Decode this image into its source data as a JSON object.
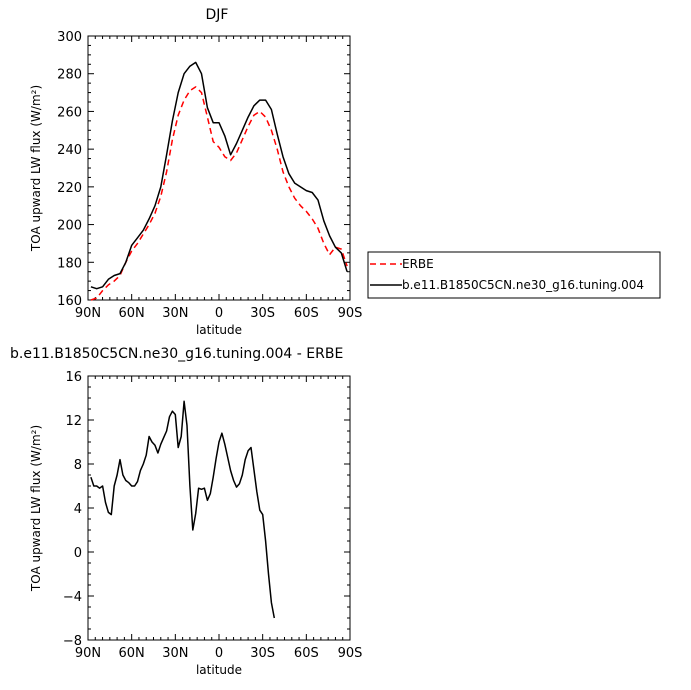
{
  "chart_data": [
    {
      "type": "line",
      "title": "DJF",
      "xlabel": "latitude",
      "ylabel": "TOA upward LW flux (W/m²)",
      "xlim": [
        90,
        -90
      ],
      "ylim": [
        160,
        300
      ],
      "x_ticks": [
        90,
        60,
        30,
        0,
        -30,
        -60,
        -90
      ],
      "x_tick_labels": [
        "90N",
        "60N",
        "30N",
        "0",
        "30S",
        "60S",
        "90S"
      ],
      "y_ticks": [
        160,
        180,
        200,
        220,
        240,
        260,
        280,
        300
      ],
      "y_tick_labels": [
        "160",
        "180",
        "200",
        "220",
        "240",
        "260",
        "280",
        "300"
      ],
      "legend_position": "right",
      "series": [
        {
          "name": "ERBE",
          "color": "#ff0000",
          "dash": "dashed",
          "points": [
            [
              88,
              160
            ],
            [
              84,
              161
            ],
            [
              80,
              165
            ],
            [
              76,
              168
            ],
            [
              72,
              170
            ],
            [
              68,
              173
            ],
            [
              64,
              180
            ],
            [
              60,
              186
            ],
            [
              56,
              190
            ],
            [
              52,
              195
            ],
            [
              48,
              200
            ],
            [
              44,
              206
            ],
            [
              40,
              215
            ],
            [
              36,
              228
            ],
            [
              32,
              245
            ],
            [
              28,
              258
            ],
            [
              24,
              266
            ],
            [
              20,
              271
            ],
            [
              16,
              273
            ],
            [
              12,
              270
            ],
            [
              8,
              257
            ],
            [
              4,
              244
            ],
            [
              0,
              241
            ],
            [
              -4,
              236
            ],
            [
              -8,
              234
            ],
            [
              -12,
              238
            ],
            [
              -16,
              245
            ],
            [
              -20,
              252
            ],
            [
              -24,
              258
            ],
            [
              -28,
              260
            ],
            [
              -32,
              257
            ],
            [
              -36,
              250
            ],
            [
              -40,
              240
            ],
            [
              -44,
              228
            ],
            [
              -48,
              220
            ],
            [
              -52,
              214
            ],
            [
              -56,
              210
            ],
            [
              -60,
              207
            ],
            [
              -64,
              203
            ],
            [
              -68,
              198
            ],
            [
              -72,
              190
            ],
            [
              -76,
              184
            ],
            [
              -80,
              188
            ],
            [
              -84,
              187
            ],
            [
              -88,
              178
            ]
          ]
        },
        {
          "name": "b.e11.B1850C5CN.ne30_g16.tuning.004",
          "color": "#000000",
          "dash": "solid",
          "points": [
            [
              88,
              167
            ],
            [
              84,
              166
            ],
            [
              80,
              167
            ],
            [
              76,
              171
            ],
            [
              72,
              173
            ],
            [
              68,
              174
            ],
            [
              64,
              180
            ],
            [
              60,
              189
            ],
            [
              56,
              193
            ],
            [
              52,
              197
            ],
            [
              48,
              203
            ],
            [
              44,
              210
            ],
            [
              40,
              220
            ],
            [
              36,
              237
            ],
            [
              32,
              255
            ],
            [
              28,
              270
            ],
            [
              24,
              280
            ],
            [
              20,
              284
            ],
            [
              16,
              286
            ],
            [
              12,
              280
            ],
            [
              8,
              262
            ],
            [
              4,
              254
            ],
            [
              0,
              254
            ],
            [
              -4,
              247
            ],
            [
              -8,
              237
            ],
            [
              -12,
              243
            ],
            [
              -16,
              250
            ],
            [
              -20,
              257
            ],
            [
              -24,
              263
            ],
            [
              -28,
              266
            ],
            [
              -32,
              266
            ],
            [
              -36,
              261
            ],
            [
              -40,
              248
            ],
            [
              -44,
              236
            ],
            [
              -48,
              227
            ],
            [
              -52,
              222
            ],
            [
              -56,
              220
            ],
            [
              -60,
              218
            ],
            [
              -64,
              217
            ],
            [
              -68,
              213
            ],
            [
              -72,
              202
            ],
            [
              -76,
              194
            ],
            [
              -80,
              188
            ],
            [
              -84,
              185
            ],
            [
              -88,
              175
            ]
          ]
        }
      ]
    },
    {
      "type": "line",
      "title": "b.e11.B1850C5CN.ne30_g16.tuning.004 - ERBE",
      "xlabel": "latitude",
      "ylabel": "TOA upward LW flux (W/m²)",
      "xlim": [
        90,
        -90
      ],
      "ylim": [
        -8,
        16
      ],
      "x_ticks": [
        90,
        60,
        30,
        0,
        -30,
        -60,
        -90
      ],
      "x_tick_labels": [
        "90N",
        "60N",
        "30N",
        "0",
        "30S",
        "60S",
        "90S"
      ],
      "y_ticks": [
        -8,
        -4,
        0,
        4,
        8,
        12,
        16
      ],
      "y_tick_labels": [
        "−8",
        "−4",
        "0",
        "4",
        "8",
        "12",
        "16"
      ],
      "series": [
        {
          "color": "#000000",
          "dash": "solid",
          "points": [
            [
              88,
              6.8
            ],
            [
              86,
              6.0
            ],
            [
              84,
              6.0
            ],
            [
              82,
              5.8
            ],
            [
              80,
              6.0
            ],
            [
              78,
              4.5
            ],
            [
              76,
              3.6
            ],
            [
              74,
              3.4
            ],
            [
              72,
              6.0
            ],
            [
              70,
              7.0
            ],
            [
              68,
              8.4
            ],
            [
              66,
              7.0
            ],
            [
              64,
              6.5
            ],
            [
              62,
              6.3
            ],
            [
              60,
              6.0
            ],
            [
              58,
              6.0
            ],
            [
              56,
              6.4
            ],
            [
              54,
              7.4
            ],
            [
              52,
              8.0
            ],
            [
              50,
              8.8
            ],
            [
              48,
              10.5
            ],
            [
              46,
              10.0
            ],
            [
              44,
              9.7
            ],
            [
              42,
              9.0
            ],
            [
              40,
              9.8
            ],
            [
              38,
              10.4
            ],
            [
              36,
              11.0
            ],
            [
              34,
              12.3
            ],
            [
              32,
              12.8
            ],
            [
              30,
              12.5
            ],
            [
              28,
              9.5
            ],
            [
              26,
              10.5
            ],
            [
              24,
              13.7
            ],
            [
              22,
              11.5
            ],
            [
              20,
              6.0
            ],
            [
              18,
              2.0
            ],
            [
              16,
              3.5
            ],
            [
              14,
              5.8
            ],
            [
              12,
              5.7
            ],
            [
              10,
              5.8
            ],
            [
              8,
              4.7
            ],
            [
              6,
              5.3
            ],
            [
              4,
              6.8
            ],
            [
              2,
              8.5
            ],
            [
              0,
              10.0
            ],
            [
              -2,
              10.8
            ],
            [
              -4,
              9.8
            ],
            [
              -6,
              8.6
            ],
            [
              -8,
              7.4
            ],
            [
              -10,
              6.5
            ],
            [
              -12,
              5.9
            ],
            [
              -14,
              6.2
            ],
            [
              -16,
              7.0
            ],
            [
              -18,
              8.4
            ],
            [
              -20,
              9.2
            ],
            [
              -22,
              9.5
            ],
            [
              -24,
              7.5
            ],
            [
              -26,
              5.5
            ],
            [
              -28,
              3.8
            ],
            [
              -30,
              3.4
            ],
            [
              -32,
              1.0
            ],
            [
              -34,
              -2.0
            ],
            [
              -36,
              -4.6
            ],
            [
              -38,
              -6.0
            ]
          ]
        }
      ]
    }
  ]
}
